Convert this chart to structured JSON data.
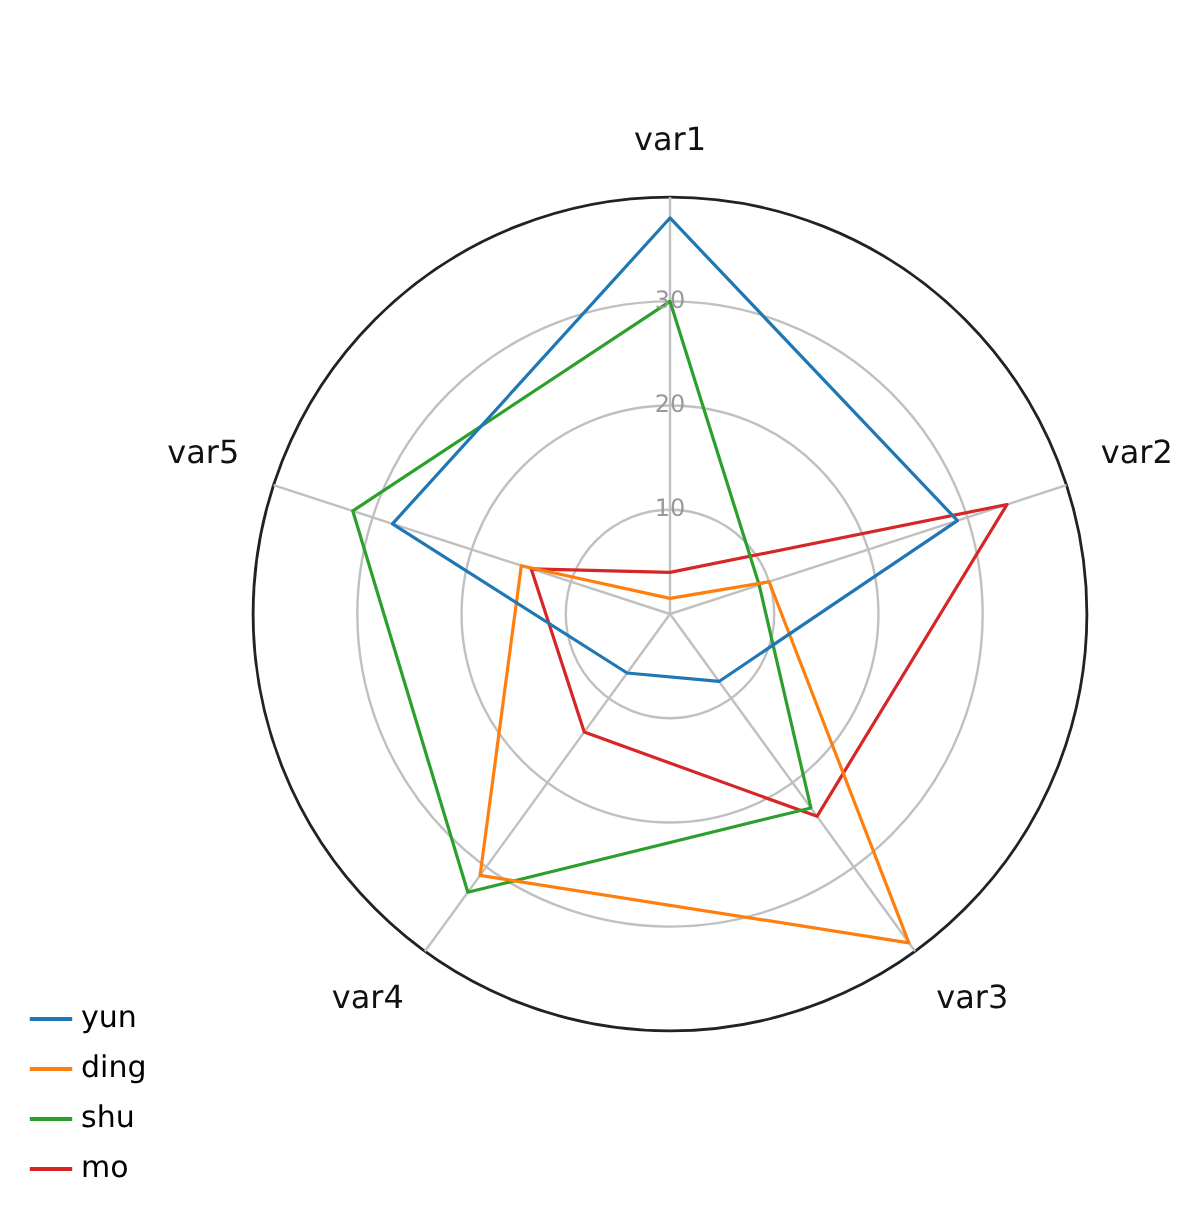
{
  "chart_data": {
    "type": "radar",
    "categories": [
      "var1",
      "var2",
      "var3",
      "var4",
      "var5"
    ],
    "series": [
      {
        "name": "yun",
        "color": "#1f77b4",
        "values": [
          38,
          29,
          8,
          7,
          28
        ]
      },
      {
        "name": "ding",
        "color": "#ff7f0e",
        "values": [
          1.5,
          10,
          39,
          31,
          15
        ]
      },
      {
        "name": "shu",
        "color": "#2ca02c",
        "values": [
          30,
          9,
          23,
          33,
          32
        ]
      },
      {
        "name": "mo",
        "color": "#d62728",
        "values": [
          4,
          34,
          24,
          14,
          14
        ]
      }
    ],
    "ylim": [
      0,
      40
    ],
    "yticks": [
      10,
      20,
      30
    ],
    "grid": true,
    "legend": "bottom left"
  }
}
